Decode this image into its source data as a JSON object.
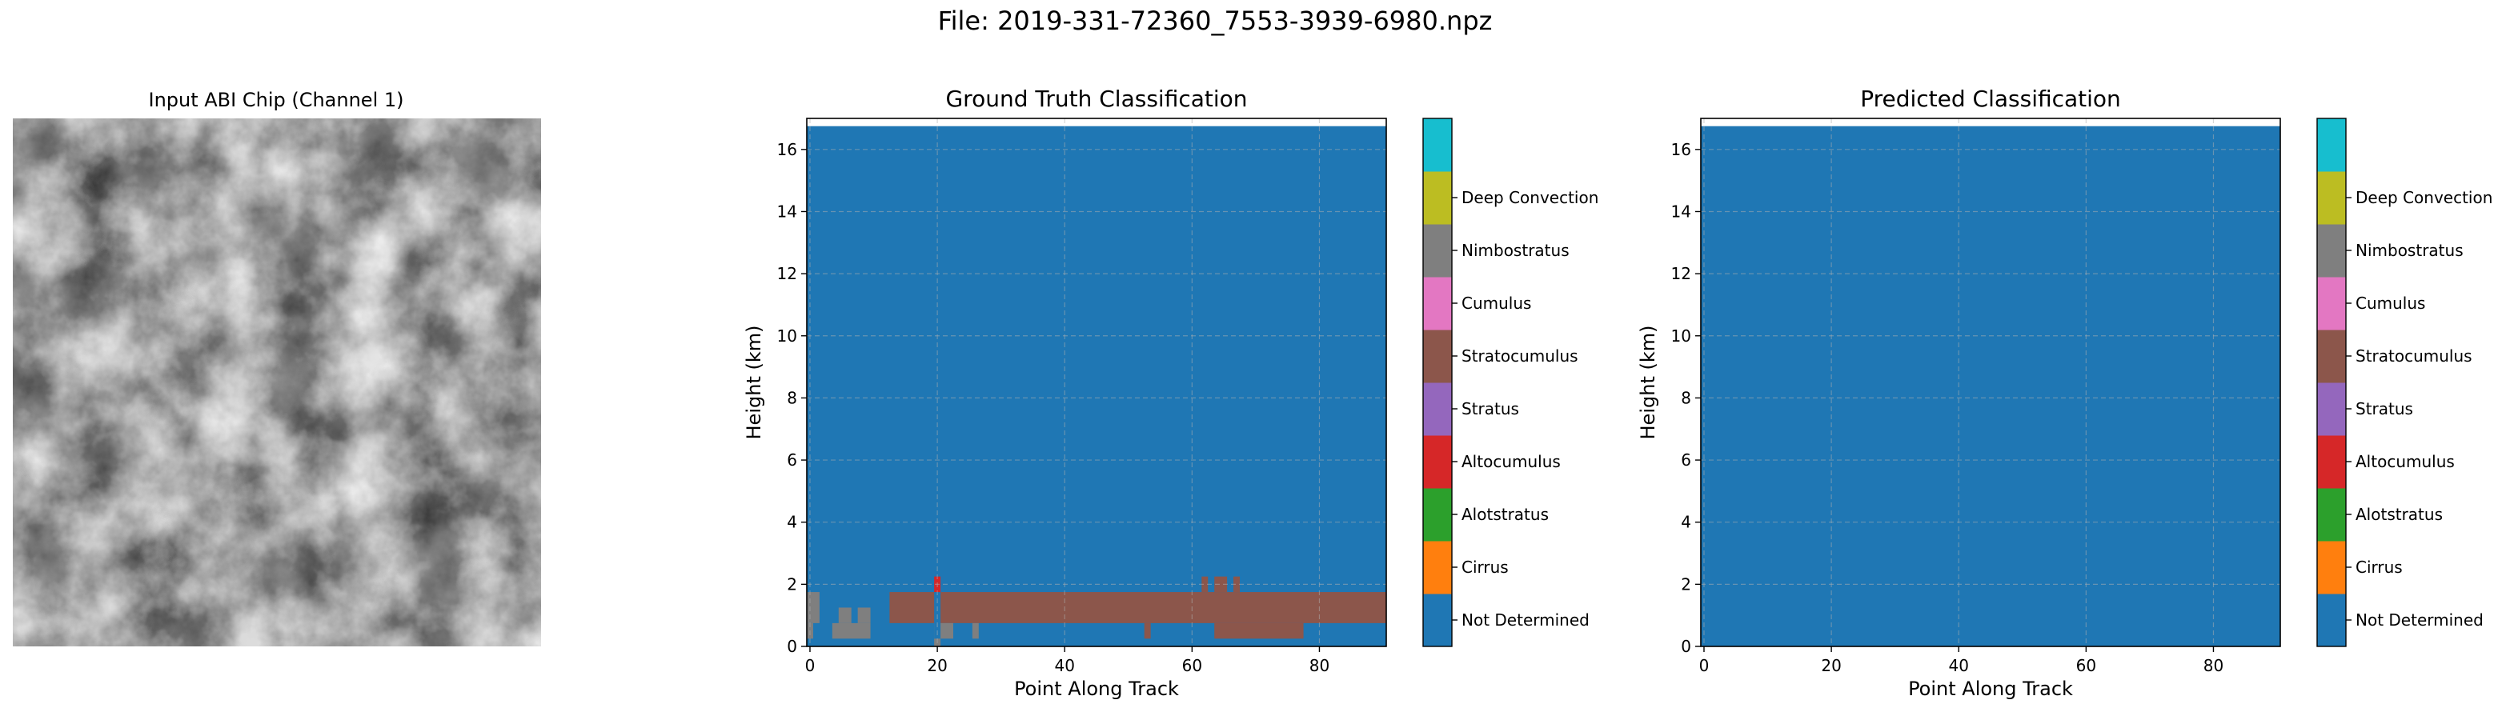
{
  "suptitle": "File: 2019-331-72360_7553-3939-6980.npz",
  "image_panel": {
    "title": "Input ABI Chip (Channel 1)"
  },
  "colors": {
    "Not Determined": "#1f77b4",
    "Cirrus": "#ff7f0e",
    "Alotstratus": "#2ca02c",
    "Altocumulus": "#d62728",
    "Stratus": "#9467bd",
    "Stratocumulus": "#8c564b",
    "Cumulus": "#e377c2",
    "Nimbostratus": "#7f7f7f",
    "Deep Convection": "#bcbd22",
    "_top": "#17becf"
  },
  "chart_data": [
    {
      "type": "heatmap",
      "title": "Ground Truth Classification",
      "xlabel": "Point Along Track",
      "ylabel": "Height (km)",
      "xlim": [
        -0.5,
        90.5
      ],
      "ylim": [
        0,
        17
      ],
      "data_top": 16.75,
      "xticks": [
        0,
        20,
        40,
        60,
        80
      ],
      "yticks": [
        0,
        2,
        4,
        6,
        8,
        10,
        12,
        14,
        16
      ],
      "grid": true,
      "background_class": "Not Determined",
      "patches": [
        {
          "class": "Stratocumulus",
          "x": [
            12.5,
            90.5
          ],
          "y": [
            0.75,
            1.75
          ]
        },
        {
          "class": "Stratocumulus",
          "x": [
            63.5,
            77.5
          ],
          "y": [
            0.25,
            0.75
          ]
        },
        {
          "class": "Stratocumulus",
          "x": [
            52.5,
            53.5
          ],
          "y": [
            0.25,
            0.75
          ]
        },
        {
          "class": "Stratocumulus",
          "x": [
            61.5,
            62.5
          ],
          "y": [
            1.75,
            2.25
          ]
        },
        {
          "class": "Stratocumulus",
          "x": [
            63.5,
            65.5
          ],
          "y": [
            1.75,
            2.25
          ]
        },
        {
          "class": "Stratocumulus",
          "x": [
            66.5,
            67.5
          ],
          "y": [
            1.75,
            2.25
          ]
        },
        {
          "class": "Nimbostratus",
          "x": [
            -0.5,
            1.5
          ],
          "y": [
            0.75,
            1.75
          ]
        },
        {
          "class": "Nimbostratus",
          "x": [
            -0.5,
            0.5
          ],
          "y": [
            0.25,
            0.75
          ]
        },
        {
          "class": "Nimbostratus",
          "x": [
            3.5,
            9.5
          ],
          "y": [
            0.25,
            0.75
          ]
        },
        {
          "class": "Nimbostratus",
          "x": [
            4.5,
            6.5
          ],
          "y": [
            0.75,
            1.25
          ]
        },
        {
          "class": "Nimbostratus",
          "x": [
            7.5,
            9.5
          ],
          "y": [
            0.75,
            1.25
          ]
        },
        {
          "class": "Nimbostratus",
          "x": [
            19.5,
            22.5
          ],
          "y": [
            0.25,
            0.75
          ]
        },
        {
          "class": "Nimbostratus",
          "x": [
            19.5,
            20.5
          ],
          "y": [
            0,
            0.25
          ]
        },
        {
          "class": "Nimbostratus",
          "x": [
            25.5,
            26.5
          ],
          "y": [
            0.25,
            0.75
          ]
        },
        {
          "class": "Not Determined",
          "x": [
            19.5,
            20.5
          ],
          "y": [
            0.25,
            1.75
          ]
        },
        {
          "class": "Altocumulus",
          "x": [
            19.5,
            20.5
          ],
          "y": [
            1.75,
            2.25
          ]
        }
      ]
    },
    {
      "type": "heatmap",
      "title": "Predicted Classification",
      "xlabel": "Point Along Track",
      "ylabel": "Height (km)",
      "xlim": [
        -0.5,
        90.5
      ],
      "ylim": [
        0,
        17
      ],
      "data_top": 16.75,
      "xticks": [
        0,
        20,
        40,
        60,
        80
      ],
      "yticks": [
        0,
        2,
        4,
        6,
        8,
        10,
        12,
        14,
        16
      ],
      "grid": true,
      "background_class": "Not Determined",
      "patches": []
    }
  ],
  "colorbar": {
    "labels": [
      "Not Determined",
      "Cirrus",
      "Alotstratus",
      "Altocumulus",
      "Stratus",
      "Stratocumulus",
      "Cumulus",
      "Nimbostratus",
      "Deep Convection"
    ],
    "swatches": [
      "#1f77b4",
      "#ff7f0e",
      "#2ca02c",
      "#d62728",
      "#9467bd",
      "#8c564b",
      "#e377c2",
      "#7f7f7f",
      "#bcbd22",
      "#17becf"
    ]
  }
}
